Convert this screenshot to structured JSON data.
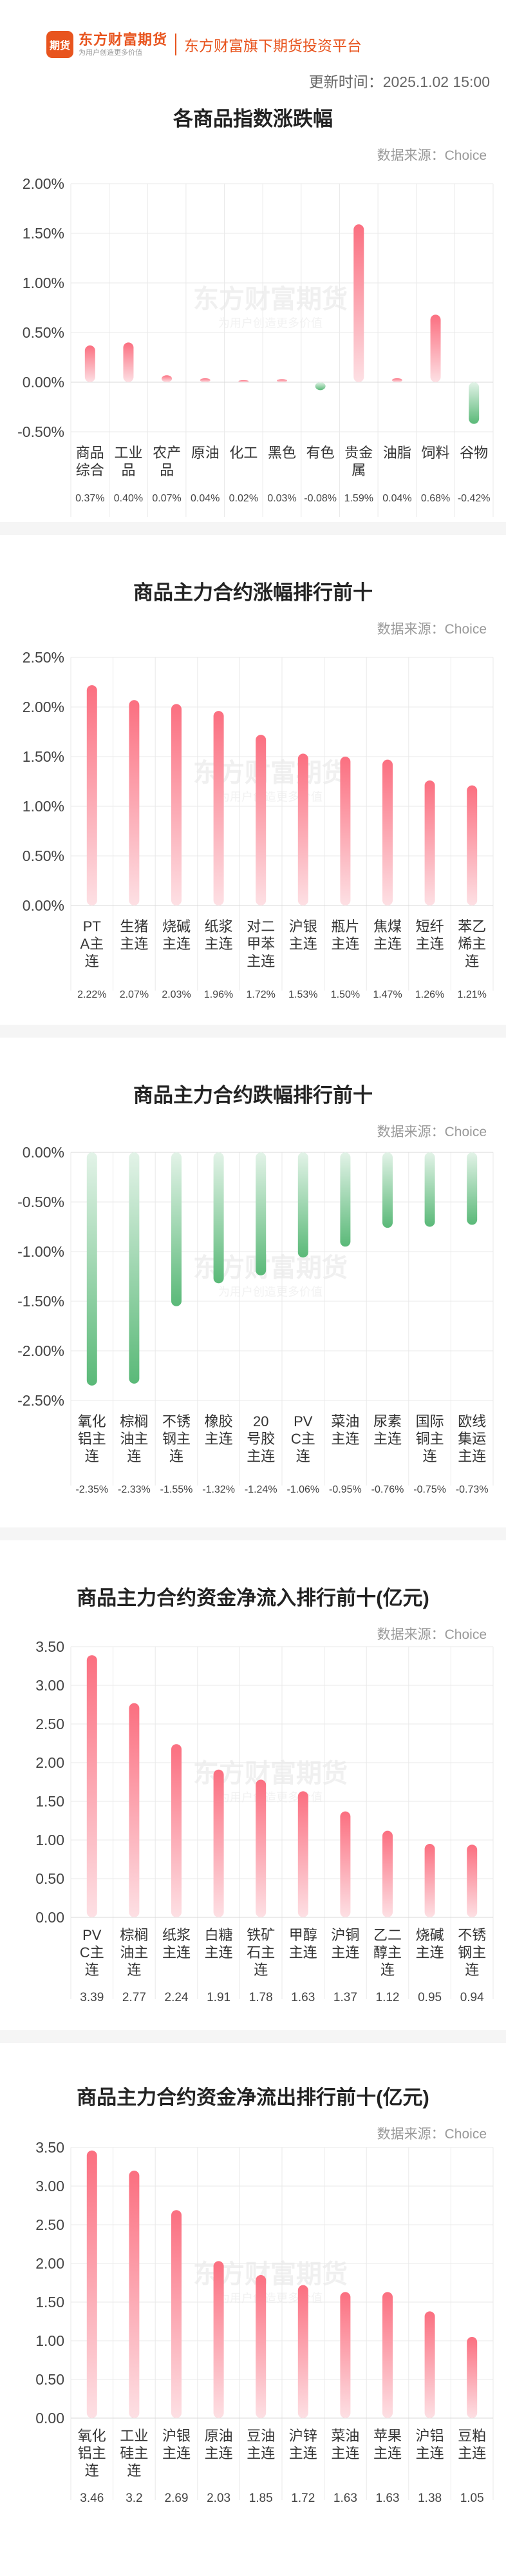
{
  "header": {
    "logo_badge": "期货",
    "logo_name": "东方财富期货",
    "logo_slogan": "为用户创造更多价值",
    "tagline": "东方财富旗下期货投资平台",
    "updated": "更新时间：2025.1.02 15:00"
  },
  "source_note": "数据来源：Choice",
  "watermark": {
    "name": "东方财富期货",
    "slogan": "为用户创造更多价值"
  },
  "colors": {
    "up_top": "#fb6f80",
    "up_bottom": "#fde0e4",
    "down_top": "#5ab978",
    "down_bottom": "#e3f3e8",
    "axis_text": "#444444",
    "grid": "#e9e9e9"
  },
  "chart_data": [
    {
      "type": "bar",
      "title": "各商品指数涨跌幅",
      "categories": [
        "商品综合",
        "工业品",
        "农产品",
        "原油",
        "化工",
        "黑色",
        "有色",
        "贵金属",
        "油脂",
        "饲料",
        "谷物"
      ],
      "values": [
        0.37,
        0.4,
        0.07,
        0.04,
        0.02,
        0.03,
        -0.08,
        1.59,
        0.04,
        0.68,
        -0.42
      ],
      "value_labels": [
        "0.37%",
        "0.40%",
        "0.07%",
        "0.04%",
        "0.02%",
        "0.03%",
        "-0.08%",
        "1.59%",
        "0.04%",
        "0.68%",
        "-0.42%"
      ],
      "yticks": [
        "2.00%",
        "1.50%",
        "1.00%",
        "0.50%",
        "0.00%",
        "-0.50%"
      ],
      "ylim": [
        -0.5,
        2.0
      ],
      "unit": "%",
      "grid": true
    },
    {
      "type": "bar",
      "title": "商品主力合约涨幅排行前十",
      "categories": [
        "PTA主连",
        "生猪主连",
        "烧碱主连",
        "纸浆主连",
        "对二甲苯主连",
        "沪银主连",
        "瓶片主连",
        "焦煤主连",
        "短纤主连",
        "苯乙烯主连"
      ],
      "values": [
        2.22,
        2.07,
        2.03,
        1.96,
        1.72,
        1.53,
        1.5,
        1.47,
        1.26,
        1.21
      ],
      "value_labels": [
        "2.22%",
        "2.07%",
        "2.03%",
        "1.96%",
        "1.72%",
        "1.53%",
        "1.50%",
        "1.47%",
        "1.26%",
        "1.21%"
      ],
      "yticks": [
        "2.50%",
        "2.00%",
        "1.50%",
        "1.00%",
        "0.50%",
        "0.00%"
      ],
      "ylim": [
        0,
        2.5
      ],
      "unit": "%",
      "grid": true
    },
    {
      "type": "bar",
      "title": "商品主力合约跌幅排行前十",
      "categories": [
        "氧化铝主连",
        "棕榈油主连",
        "不锈钢主连",
        "橡胶主连",
        "20号胶主连",
        "PVC主连",
        "菜油主连",
        "尿素主连",
        "国际铜主连",
        "欧线集运主连"
      ],
      "values": [
        -2.35,
        -2.33,
        -1.55,
        -1.32,
        -1.24,
        -1.06,
        -0.95,
        -0.76,
        -0.75,
        -0.73
      ],
      "value_labels": [
        "-2.35%",
        "-2.33%",
        "-1.55%",
        "-1.32%",
        "-1.24%",
        "-1.06%",
        "-0.95%",
        "-0.76%",
        "-0.75%",
        "-0.73%"
      ],
      "yticks": [
        "0.00%",
        "-0.50%",
        "-1.00%",
        "-1.50%",
        "-2.00%",
        "-2.50%"
      ],
      "ylim": [
        -2.5,
        0
      ],
      "unit": "%",
      "grid": true
    },
    {
      "type": "bar",
      "title": "商品主力合约资金净流入排行前十(亿元)",
      "categories": [
        "PVC主连",
        "棕榈油主连",
        "纸浆主连",
        "白糖主连",
        "铁矿石主连",
        "甲醇主连",
        "沪铜主连",
        "乙二醇主连",
        "烧碱主连",
        "不锈钢主连"
      ],
      "values": [
        3.39,
        2.77,
        2.24,
        1.91,
        1.78,
        1.63,
        1.37,
        1.12,
        0.95,
        0.94
      ],
      "value_labels": [
        "3.39",
        "2.77",
        "2.24",
        "1.91",
        "1.78",
        "1.63",
        "1.37",
        "1.12",
        "0.95",
        "0.94"
      ],
      "yticks": [
        "3.50",
        "3.00",
        "2.50",
        "2.00",
        "1.50",
        "1.00",
        "0.50",
        "0.00"
      ],
      "ylim": [
        0,
        3.5
      ],
      "unit": "亿元",
      "grid": true
    },
    {
      "type": "bar",
      "title": "商品主力合约资金净流出排行前十(亿元)",
      "categories": [
        "氧化铝主连",
        "工业硅主连",
        "沪银主连",
        "原油主连",
        "豆油主连",
        "沪锌主连",
        "菜油主连",
        "苹果主连",
        "沪铝主连",
        "豆粕主连"
      ],
      "values": [
        3.46,
        3.2,
        2.69,
        2.03,
        1.85,
        1.72,
        1.63,
        1.63,
        1.38,
        1.05
      ],
      "value_labels": [
        "3.46",
        "3.2",
        "2.69",
        "2.03",
        "1.85",
        "1.72",
        "1.63",
        "1.63",
        "1.38",
        "1.05"
      ],
      "yticks": [
        "3.50",
        "3.00",
        "2.50",
        "2.00",
        "1.50",
        "1.00",
        "0.50",
        "0.00"
      ],
      "ylim": [
        0,
        3.5
      ],
      "unit": "亿元",
      "grid": true
    }
  ]
}
